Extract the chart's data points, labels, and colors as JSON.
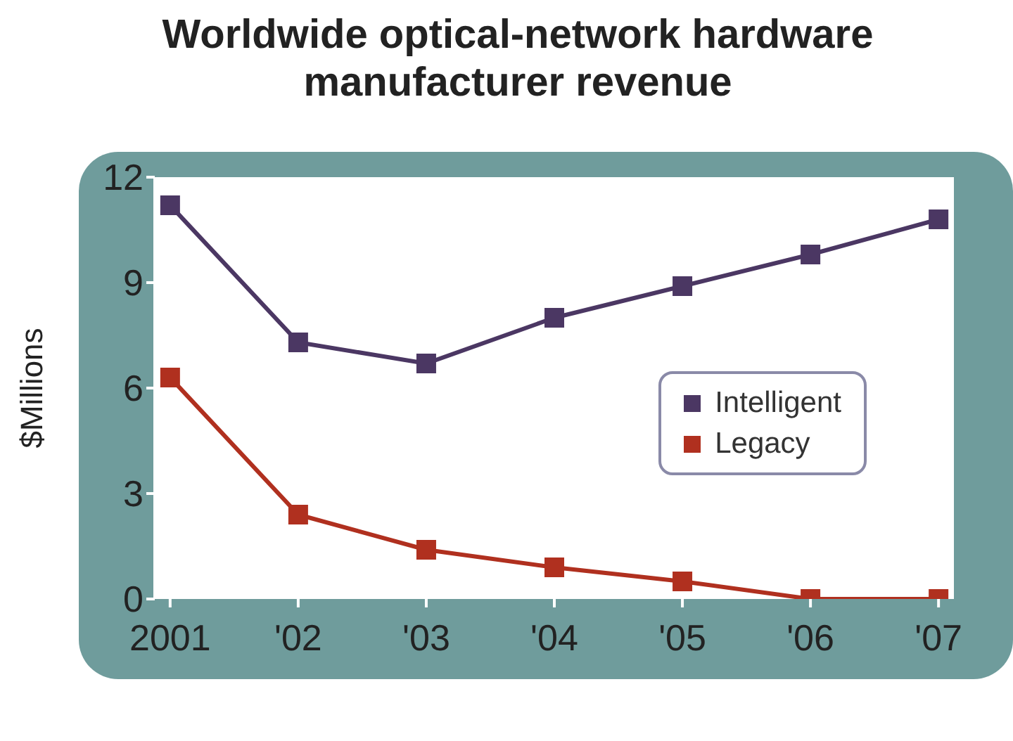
{
  "chart_data": {
    "type": "line",
    "title": "Worldwide optical-network hardware manufacturer revenue",
    "ylabel": "$Millions",
    "categories": [
      "2001",
      "'02",
      "'03",
      "'04",
      "'05",
      "'06",
      "'07"
    ],
    "series": [
      {
        "name": "Intelligent",
        "color": "#4b3763",
        "values": [
          11.2,
          7.3,
          6.7,
          8.0,
          8.9,
          9.8,
          10.8
        ]
      },
      {
        "name": "Legacy",
        "color": "#b0301f",
        "values": [
          6.3,
          2.4,
          1.4,
          0.9,
          0.5,
          0.0,
          0.0
        ]
      }
    ],
    "ylim": [
      0,
      12
    ],
    "yticks": [
      0,
      3,
      6,
      9,
      12
    ],
    "grid": false,
    "legend": "right",
    "marker": "square",
    "line_style": "solid"
  }
}
